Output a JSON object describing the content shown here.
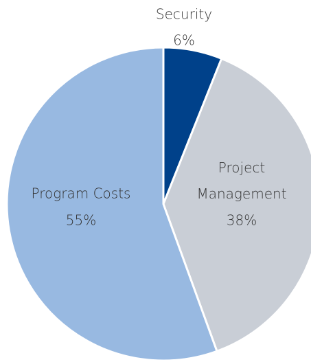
{
  "chart_data": {
    "type": "pie",
    "categories": [
      "Security",
      "Project Management",
      "Program Costs"
    ],
    "values": [
      6,
      38,
      55
    ],
    "value_labels": [
      "6%",
      "38%",
      "55%"
    ],
    "colors": [
      "#00418a",
      "#c9ced6",
      "#98b9e1"
    ]
  }
}
